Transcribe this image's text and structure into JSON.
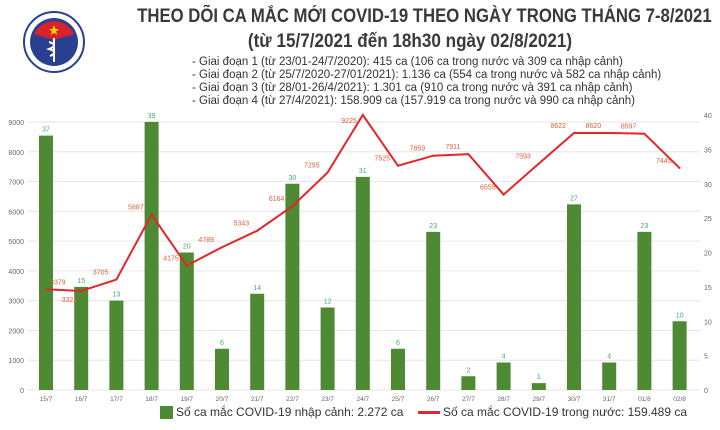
{
  "header": {
    "title": "THEO DÕI CA MẮC MỚI COVID-19 THEO NGÀY TRONG THÁNG 7-8/2021",
    "subtitle": "(từ 15/7/2021 đến 18h30 ngày 02/8/2021)",
    "phases": [
      "- Giai đoạn 1 (từ 23/01-24/7/2020): 415 ca (106 ca trong nước và 309 ca nhập cảnh)",
      "- Giai đoạn 2 (từ 25/7/2020-27/01/2021): 1.136 ca (554 ca trong nước và 582 ca nhập cảnh)",
      "- Giai đoạn 3 (từ 28/01-26/4/2021): 1.301 ca (910 ca trong nước và 391 ca nhập cảnh)",
      "- Giai đoạn 4 (từ 27/4/2021): 158.909 ca (157.919 ca trong nước và 990 ca nhập cảnh)"
    ],
    "logo_text": "BỘ Y TẾ · MINISTRY OF HEALTH"
  },
  "chart_data": {
    "type": "bar+line",
    "categories": [
      "15/7",
      "16/7",
      "17/7",
      "18/7",
      "19/7",
      "20/7",
      "21/7",
      "22/7",
      "23/7",
      "24/7",
      "25/7",
      "26/7",
      "27/7",
      "28/7",
      "29/7",
      "30/7",
      "31/7",
      "01/8",
      "02/8"
    ],
    "series": [
      {
        "name": "Số ca mắc COVID-19 nhập cảnh: 2.272 ca",
        "type": "bar",
        "axis": "right",
        "color": "#4e8a33",
        "label_color": "#3cae6e",
        "values": [
          37,
          15,
          13,
          39,
          20,
          6,
          14,
          30,
          12,
          31,
          6,
          23,
          2,
          4,
          1,
          27,
          4,
          23,
          10
        ]
      },
      {
        "name": "Số ca mắc COVID-19 trong nước: 159.489 ca",
        "type": "line",
        "axis": "left",
        "color": "#e3262a",
        "label_color": "#e0603a",
        "values": [
          3379,
          3321,
          3705,
          5887,
          4175,
          4789,
          5343,
          6164,
          7295,
          9225,
          7525,
          7859,
          7911,
          6555,
          7593,
          8622,
          8620,
          8597,
          7445
        ]
      }
    ],
    "left_axis": {
      "ticks": [
        0,
        1000,
        2000,
        3000,
        4000,
        5000,
        6000,
        7000,
        8000,
        9000
      ],
      "range": [
        0,
        9000
      ]
    },
    "right_axis": {
      "ticks": [
        0,
        5,
        10,
        15,
        20,
        25,
        30,
        35,
        40
      ],
      "range": [
        0,
        40
      ]
    },
    "grid": true,
    "legend": "bottom"
  }
}
